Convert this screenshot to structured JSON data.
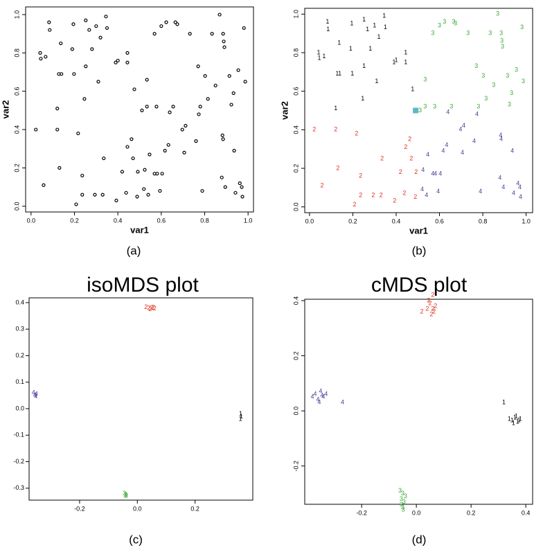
{
  "chart_data": [
    {
      "type": "scatter",
      "caption": "(a)",
      "x_label": "var1",
      "y_label": "var2",
      "xlim": [
        -0.025,
        1.025
      ],
      "ylim": [
        -0.03,
        1.04
      ],
      "xticks": [
        {
          "value": 0,
          "label": "0.0"
        },
        {
          "value": 0.2,
          "label": "0.2"
        },
        {
          "value": 0.4,
          "label": "0.4"
        },
        {
          "value": 0.6,
          "label": "0.6"
        },
        {
          "value": 0.8,
          "label": "0.8"
        },
        {
          "value": 1,
          "label": "1.0"
        }
      ],
      "yticks": [
        {
          "value": 0,
          "label": "0.0"
        },
        {
          "value": 0.2,
          "label": "0.2"
        },
        {
          "value": 0.4,
          "label": "0.4"
        },
        {
          "value": 0.6,
          "label": "0.6"
        },
        {
          "value": 0.8,
          "label": "0.8"
        },
        {
          "value": 1,
          "label": "1.0"
        }
      ],
      "series": [
        {
          "color": "#000000",
          "marker": "circle",
          "x": [
            0.042,
            0.045,
            0.067,
            0.083,
            0.086,
            0.121,
            0.128,
            0.14,
            0.137,
            0.195,
            0.19,
            0.198,
            0.246,
            0.252,
            0.252,
            0.268,
            0.281,
            0.3,
            0.31,
            0.32,
            0.345,
            0.35,
            0.39,
            0.4,
            0.444,
            0.444,
            0.476,
            0.022,
            0.058,
            0.121,
            0.131,
            0.208,
            0.217,
            0.236,
            0.236,
            0.294,
            0.33,
            0.335,
            0.393,
            0.42,
            0.438,
            0.444,
            0.463,
            0.47,
            0.489,
            0.492,
            0.511,
            0.534,
            0.534,
            0.569,
            0.578,
            0.6,
            0.623,
            0.655,
            0.665,
            0.674,
            0.732,
            0.77,
            0.78,
            0.802,
            0.815,
            0.834,
            0.85,
            0.869,
            0.885,
            0.888,
            0.891,
            0.914,
            0.923,
            0.933,
            0.955,
            0.981,
            0.987,
            0.52,
            0.524,
            0.54,
            0.546,
            0.569,
            0.581,
            0.594,
            0.604,
            0.617,
            0.633,
            0.639,
            0.697,
            0.706,
            0.712,
            0.76,
            0.773,
            0.789,
            0.879,
            0.882,
            0.885,
            0.895,
            0.936,
            0.942,
            0.962,
            0.971,
            0.974
          ],
          "values": [
            0.8,
            0.77,
            0.78,
            0.96,
            0.92,
            0.51,
            0.69,
            0.69,
            0.85,
            0.95,
            0.82,
            0.69,
            0.56,
            0.97,
            0.73,
            0.92,
            0.82,
            0.94,
            0.65,
            0.88,
            0.99,
            0.93,
            0.75,
            0.76,
            0.8,
            0.75,
            0.61,
            0.4,
            0.11,
            0.4,
            0.2,
            0.01,
            0.38,
            0.06,
            0.16,
            0.06,
            0.06,
            0.25,
            0.03,
            0.18,
            0.07,
            0.31,
            0.35,
            0.25,
            0.05,
            0.18,
            0.5,
            0.52,
            0.66,
            0.9,
            0.52,
            0.94,
            0.96,
            0.52,
            0.96,
            0.95,
            0.9,
            0.73,
            0.52,
            0.68,
            0.56,
            0.9,
            0.63,
            1.0,
            0.9,
            0.86,
            0.83,
            0.68,
            0.53,
            0.59,
            0.71,
            0.93,
            0.65,
            0.09,
            0.19,
            0.06,
            0.27,
            0.17,
            0.17,
            0.08,
            0.17,
            0.29,
            0.32,
            0.49,
            0.4,
            0.28,
            0.42,
            0.34,
            0.48,
            0.08,
            0.15,
            0.37,
            0.35,
            0.1,
            0.29,
            0.07,
            0.12,
            0.1,
            0.05
          ]
        }
      ]
    },
    {
      "type": "scatter",
      "caption": "(b)",
      "x_label": "var1",
      "y_label": "var2",
      "xlim": [
        -0.022,
        1.03
      ],
      "ylim": [
        -0.03,
        1.03
      ],
      "xticks": [
        {
          "value": 0,
          "label": "0.0"
        },
        {
          "value": 0.2,
          "label": "0.2"
        },
        {
          "value": 0.4,
          "label": "0.4"
        },
        {
          "value": 0.6,
          "label": "0.6"
        },
        {
          "value": 0.8,
          "label": "0.8"
        },
        {
          "value": 1,
          "label": "1.0"
        }
      ],
      "yticks": [
        {
          "value": 0,
          "label": "0.0"
        },
        {
          "value": 0.2,
          "label": "0.2"
        },
        {
          "value": 0.4,
          "label": "0.4"
        },
        {
          "value": 0.6,
          "label": "0.6"
        },
        {
          "value": 0.8,
          "label": "0.8"
        },
        {
          "value": 1,
          "label": "1.0"
        }
      ],
      "series": [
        {
          "name": "1",
          "color": "#000000",
          "x": [
            0.042,
            0.045,
            0.067,
            0.083,
            0.086,
            0.121,
            0.128,
            0.14,
            0.137,
            0.195,
            0.19,
            0.198,
            0.246,
            0.252,
            0.252,
            0.268,
            0.281,
            0.3,
            0.31,
            0.32,
            0.345,
            0.35,
            0.39,
            0.4,
            0.444,
            0.444,
            0.476
          ],
          "values": [
            0.8,
            0.77,
            0.78,
            0.96,
            0.92,
            0.51,
            0.69,
            0.69,
            0.85,
            0.95,
            0.82,
            0.69,
            0.56,
            0.97,
            0.73,
            0.92,
            0.82,
            0.94,
            0.65,
            0.88,
            0.99,
            0.93,
            0.75,
            0.76,
            0.8,
            0.75,
            0.61
          ]
        },
        {
          "name": "2",
          "color": "#e0301e",
          "x": [
            0.022,
            0.058,
            0.121,
            0.131,
            0.208,
            0.217,
            0.236,
            0.236,
            0.294,
            0.33,
            0.335,
            0.393,
            0.42,
            0.438,
            0.444,
            0.463,
            0.47,
            0.489,
            0.492
          ],
          "values": [
            0.4,
            0.11,
            0.4,
            0.2,
            0.01,
            0.38,
            0.06,
            0.16,
            0.06,
            0.06,
            0.25,
            0.03,
            0.18,
            0.07,
            0.31,
            0.35,
            0.25,
            0.05,
            0.18
          ]
        },
        {
          "name": "3",
          "color": "#3aaa35",
          "x": [
            0.511,
            0.534,
            0.534,
            0.569,
            0.578,
            0.6,
            0.623,
            0.655,
            0.665,
            0.674,
            0.732,
            0.77,
            0.78,
            0.802,
            0.815,
            0.834,
            0.85,
            0.869,
            0.885,
            0.888,
            0.891,
            0.914,
            0.923,
            0.933,
            0.955,
            0.981,
            0.987
          ],
          "values": [
            0.5,
            0.52,
            0.66,
            0.9,
            0.52,
            0.94,
            0.96,
            0.52,
            0.96,
            0.95,
            0.9,
            0.73,
            0.52,
            0.68,
            0.56,
            0.9,
            0.63,
            1.0,
            0.9,
            0.86,
            0.83,
            0.68,
            0.53,
            0.59,
            0.71,
            0.93,
            0.65
          ]
        },
        {
          "name": "4",
          "color": "#4a3c99",
          "x": [
            0.52,
            0.524,
            0.54,
            0.546,
            0.569,
            0.581,
            0.594,
            0.604,
            0.617,
            0.633,
            0.639,
            0.697,
            0.706,
            0.712,
            0.76,
            0.773,
            0.789,
            0.879,
            0.882,
            0.885,
            0.895,
            0.936,
            0.942,
            0.962,
            0.971,
            0.974
          ],
          "values": [
            0.09,
            0.19,
            0.06,
            0.27,
            0.17,
            0.17,
            0.08,
            0.17,
            0.29,
            0.32,
            0.49,
            0.4,
            0.28,
            0.42,
            0.34,
            0.48,
            0.08,
            0.15,
            0.37,
            0.35,
            0.1,
            0.29,
            0.07,
            0.12,
            0.1,
            0.05
          ]
        },
        {
          "color": "#5fb8c8",
          "marker": "square",
          "x": [
            0.49
          ],
          "values": [
            0.5
          ]
        }
      ]
    },
    {
      "type": "scatter",
      "title": "isoMDS plot",
      "caption": "(c)",
      "xlim": [
        -0.375,
        0.4
      ],
      "ylim": [
        -0.345,
        0.418
      ],
      "xticks": [
        {
          "value": -0.2,
          "label": "-0.2"
        },
        {
          "value": 0,
          "label": "0.0"
        },
        {
          "value": 0.2,
          "label": "0.2"
        }
      ],
      "yticks": [
        {
          "value": -0.3,
          "label": "-0.3"
        },
        {
          "value": -0.2,
          "label": "-0.2"
        },
        {
          "value": -0.1,
          "label": "-0.1"
        },
        {
          "value": 0,
          "label": "0.0"
        },
        {
          "value": 0.1,
          "label": "0.1"
        },
        {
          "value": 0.2,
          "label": "0.2"
        },
        {
          "value": 0.3,
          "label": "0.3"
        },
        {
          "value": 0.4,
          "label": "0.4"
        }
      ],
      "series": [
        {
          "name": "1",
          "color": "#000000",
          "x": [
            0.358,
            0.36,
            0.357
          ],
          "values": [
            -0.02,
            -0.03,
            -0.04
          ]
        },
        {
          "name": "2",
          "color": "#e0301e",
          "x": [
            0.03,
            0.04,
            0.05,
            0.06,
            0.045,
            0.055
          ],
          "values": [
            0.383,
            0.378,
            0.38,
            0.377,
            0.375,
            0.381
          ]
        },
        {
          "name": "3",
          "color": "#3aaa35",
          "x": [
            -0.045,
            -0.04,
            -0.038,
            -0.042
          ],
          "values": [
            -0.32,
            -0.325,
            -0.33,
            -0.328
          ]
        },
        {
          "name": "4",
          "color": "#4a3c99",
          "x": [
            -0.36,
            -0.355,
            -0.35,
            -0.352
          ],
          "values": [
            0.06,
            0.05,
            0.055,
            0.045
          ]
        }
      ]
    },
    {
      "type": "scatter",
      "title": "cMDS plot",
      "caption": "(d)",
      "xlim": [
        -0.408,
        0.425
      ],
      "ylim": [
        -0.339,
        0.405
      ],
      "xticks": [
        {
          "value": -0.2,
          "label": "-0.2"
        },
        {
          "value": 0,
          "label": "0.0"
        },
        {
          "value": 0.2,
          "label": "0.2"
        },
        {
          "value": 0.4,
          "label": "0.4"
        }
      ],
      "yticks": [
        {
          "value": -0.2,
          "label": "-0.2"
        },
        {
          "value": 0,
          "label": "0.0"
        },
        {
          "value": 0.2,
          "label": "0.2"
        },
        {
          "value": 0.4,
          "label": "0.4"
        }
      ],
      "series": [
        {
          "name": "1",
          "color": "#000000",
          "x": [
            0.32,
            0.34,
            0.35,
            0.36,
            0.37,
            0.38,
            0.355,
            0.365,
            0.375
          ],
          "values": [
            0.03,
            -0.03,
            -0.035,
            -0.025,
            -0.04,
            -0.03,
            -0.045,
            -0.02,
            -0.035
          ]
        },
        {
          "name": "2",
          "color": "#e0301e",
          "x": [
            0.02,
            0.04,
            0.05,
            0.06,
            0.07,
            0.055,
            0.065,
            0.045,
            0.06
          ],
          "values": [
            0.36,
            0.37,
            0.39,
            0.42,
            0.38,
            0.35,
            0.36,
            0.4,
            0.37
          ]
        },
        {
          "name": "3",
          "color": "#3aaa35",
          "x": [
            -0.06,
            -0.05,
            -0.055,
            -0.045,
            -0.05,
            -0.04,
            -0.055,
            -0.048
          ],
          "values": [
            -0.29,
            -0.3,
            -0.32,
            -0.33,
            -0.35,
            -0.31,
            -0.34,
            -0.36
          ]
        },
        {
          "name": "4",
          "color": "#4a3c99",
          "x": [
            -0.38,
            -0.37,
            -0.36,
            -0.35,
            -0.34,
            -0.33,
            -0.355,
            -0.345,
            -0.27
          ],
          "values": [
            0.05,
            0.06,
            0.04,
            0.07,
            0.05,
            0.06,
            0.03,
            0.055,
            0.03
          ]
        }
      ]
    }
  ]
}
